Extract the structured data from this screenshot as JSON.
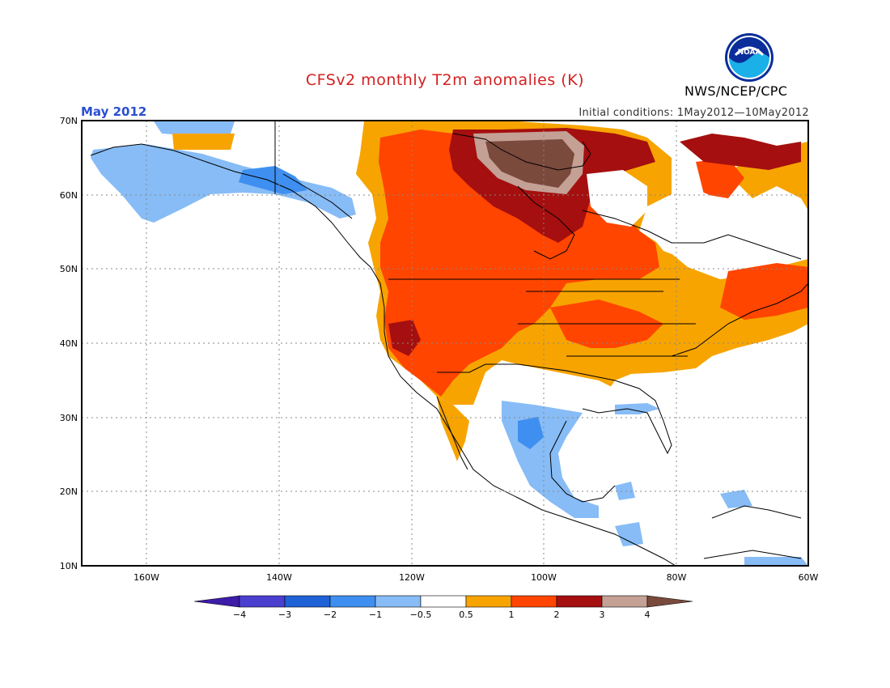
{
  "header": {
    "title": "CFSv2 monthly T2m anomalies (K)",
    "period": "May 2012",
    "initial_conditions": "Initial conditions: 1May2012—10May2012",
    "agency": "NWS/NCEP/CPC",
    "logo_text": "NOAA"
  },
  "map": {
    "lat_labels": [
      "70N",
      "60N",
      "50N",
      "40N",
      "30N",
      "20N",
      "10N"
    ],
    "lon_labels": [
      "160W",
      "140W",
      "120W",
      "100W",
      "80W",
      "60W"
    ],
    "grid": true
  },
  "legend": {
    "ticks": [
      "−4",
      "−3",
      "−2",
      "−1",
      "−0.5",
      "0.5",
      "1",
      "2",
      "3",
      "4"
    ],
    "colors": [
      "#3d1ca8",
      "#4b3fd0",
      "#1f62d8",
      "#3f8ff0",
      "#87bcf6",
      "#ffffff",
      "#f7a400",
      "#ff4500",
      "#a50f0f",
      "#c4a095",
      "#7a4a3c"
    ]
  }
}
